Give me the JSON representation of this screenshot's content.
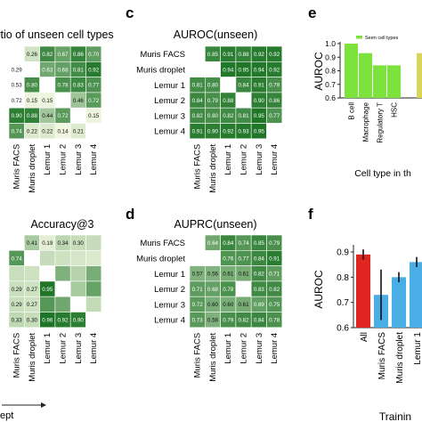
{
  "panel_letters": {
    "c": "c",
    "d": "d",
    "e": "e",
    "f": "f"
  },
  "axis_arrow_label": "ept",
  "chart_data": [
    {
      "type": "heatmap",
      "id": "ratio",
      "title": "rtio of unseen cell types",
      "row_labels": [
        "",
        "",
        "",
        "",
        "",
        ""
      ],
      "col_labels": [
        "Muris FACS",
        "Muris droplet",
        "Lemur 1",
        "Lemur 2",
        "Lemur 3",
        "Lemur 4"
      ],
      "values": [
        [
          null,
          0.26,
          0.82,
          0.67,
          0.86,
          0.7
        ],
        [
          null,
          null,
          0.63,
          0.68,
          0.81,
          0.92
        ],
        [
          null,
          0.8,
          null,
          0.78,
          0.83,
          0.77
        ],
        [
          null,
          0.15,
          0.15,
          null,
          0.46,
          0.72
        ],
        [
          0.9,
          0.88,
          0.44,
          0.72,
          null,
          0.15
        ],
        [
          0.74,
          0.22,
          0.22,
          0.14,
          0.21,
          null
        ]
      ],
      "value_labels": [
        [
          "",
          "0.26",
          "0.82",
          "0.67",
          "0.86",
          "0.70"
        ],
        [
          "0.29",
          "",
          "0.63",
          "0.68",
          "0.81",
          "0.92"
        ],
        [
          "0.53",
          "0.80",
          "",
          "0.78",
          "0.83",
          "0.77"
        ],
        [
          "0.72",
          "0.15",
          "0.15",
          "",
          "0.46",
          "0.72"
        ],
        [
          "0.90",
          "0.88",
          "0.44",
          "0.72",
          "",
          "0.15"
        ],
        [
          "0.74",
          "0.22",
          "0.22",
          "0.14",
          "0.21",
          ""
        ]
      ]
    },
    {
      "type": "heatmap",
      "id": "auroc",
      "title": "AUROC(unseen)",
      "row_labels": [
        "Muris FACS",
        "Muris droplet",
        "Lemur 1",
        "Lemur 2",
        "Lemur 3",
        "Lemur 4"
      ],
      "col_labels": [
        "Muris FACS",
        "Muris droplet",
        "Lemur 1",
        "Lemur 2",
        "Lemur 3",
        "Lemur 4"
      ],
      "values": [
        [
          null,
          0.85,
          0.91,
          0.88,
          0.92,
          0.92
        ],
        [
          null,
          null,
          0.94,
          0.95,
          0.94,
          0.92
        ],
        [
          0.81,
          0.8,
          null,
          0.84,
          0.91,
          0.79
        ],
        [
          0.84,
          0.79,
          0.88,
          null,
          0.9,
          0.86
        ],
        [
          0.82,
          0.8,
          0.82,
          0.81,
          0.95,
          0.77
        ],
        [
          0.91,
          0.9,
          0.92,
          0.93,
          0.95,
          null
        ]
      ],
      "value_labels": [
        [
          "",
          "0.85",
          "0.91",
          "0.88",
          "0.92",
          "0.92"
        ],
        [
          "",
          "",
          "0.94",
          "0.95",
          "0.94",
          "0.92"
        ],
        [
          "0.81",
          "0.80",
          "",
          "0.84",
          "0.91",
          "0.79"
        ],
        [
          "0.84",
          "0.79",
          "0.88",
          "",
          "0.90",
          "0.86"
        ],
        [
          "0.82",
          "0.80",
          "0.82",
          "0.81",
          "0.95",
          "0.77"
        ],
        [
          "0.91",
          "0.90",
          "0.92",
          "0.93",
          "0.95",
          ""
        ]
      ]
    },
    {
      "type": "heatmap",
      "id": "acc3",
      "title": "Accuracy@3",
      "row_labels": [
        "",
        "",
        "",
        "",
        "",
        ""
      ],
      "col_labels": [
        "Muris FACS",
        "Muris droplet",
        "Lemur 1",
        "Lemur 2",
        "Lemur 3",
        "Lemur 4"
      ],
      "values": [
        [
          null,
          0.41,
          0.19,
          0.34,
          0.3,
          0.3
        ],
        [
          0.74,
          null,
          0.3,
          0.27,
          0.24,
          0.22
        ],
        [
          0.29,
          0.27,
          null,
          0.58,
          0.36,
          0.6
        ],
        [
          0.29,
          0.27,
          0.95,
          null,
          0.42,
          0.67
        ],
        [
          0.29,
          0.27,
          0.74,
          0.64,
          null,
          0.31
        ],
        [
          0.33,
          0.3,
          0.96,
          0.92,
          0.9,
          null
        ]
      ],
      "value_labels": [
        [
          "",
          "0.41",
          "0.19",
          "0.34",
          "0.30",
          ""
        ],
        [
          "0.74",
          "",
          "",
          "",
          "",
          ""
        ],
        [
          "",
          "",
          "",
          "",
          "",
          ""
        ],
        [
          "0.29",
          "0.27",
          "0.95",
          "",
          "",
          ""
        ],
        [
          "0.29",
          "0.27",
          "",
          "",
          "",
          ""
        ],
        [
          "0.33",
          "0.30",
          "0.96",
          "0.92",
          "0.90",
          ""
        ]
      ]
    },
    {
      "type": "heatmap",
      "id": "auprc",
      "title": "AUPRC(unseen)",
      "row_labels": [
        "Muris FACS",
        "Muris droplet",
        "Lemur 1",
        "Lemur 2",
        "Lemur 3",
        "Lemur 4"
      ],
      "col_labels": [
        "Muris FACS",
        "Muris droplet",
        "Lemur 1",
        "Lemur 2",
        "Lemur 3",
        "Lemur 4"
      ],
      "values": [
        [
          null,
          0.64,
          0.84,
          0.74,
          0.85,
          0.79
        ],
        [
          null,
          null,
          0.76,
          0.77,
          0.84,
          0.91
        ],
        [
          0.57,
          0.56,
          0.61,
          0.61,
          0.82,
          0.71
        ],
        [
          0.71,
          0.68,
          0.78,
          null,
          0.83,
          0.82
        ],
        [
          0.72,
          0.6,
          0.6,
          0.61,
          0.69,
          0.75
        ],
        [
          0.73,
          0.58,
          0.79,
          0.82,
          0.84,
          0.78
        ]
      ],
      "value_labels": [
        [
          "",
          "0.64",
          "0.84",
          "0.74",
          "0.85",
          "0.79"
        ],
        [
          "",
          "",
          "0.76",
          "0.77",
          "0.84",
          "0.91"
        ],
        [
          "0.57",
          "0.56",
          "0.61",
          "0.61",
          "0.82",
          "0.71"
        ],
        [
          "0.71",
          "0.68",
          "0.78",
          "",
          "0.83",
          "0.82"
        ],
        [
          "0.72",
          "0.60",
          "0.60",
          "0.61",
          "0.69",
          "0.75"
        ],
        [
          "0.73",
          "0.58",
          "0.79",
          "0.82",
          "0.84",
          "0.78"
        ]
      ]
    },
    {
      "type": "bar",
      "id": "e",
      "title": "",
      "ylabel": "AUROC",
      "xlabel": "Cell type in th",
      "categories": [
        "B cell",
        "Macrophage",
        "Regulatory T",
        "HSC"
      ],
      "values": [
        1.0,
        0.93,
        0.84,
        0.84
      ],
      "extra_bar_value": 0.93,
      "ylim": [
        0.6,
        1.0
      ],
      "yticks": [
        "0.6",
        "0.7",
        "0.8",
        "0.9",
        "1.0"
      ],
      "legend": "Seen cell types",
      "colors": {
        "seen": "#7be33b",
        "other": "#d8d65a"
      }
    },
    {
      "type": "bar",
      "id": "f",
      "title": "",
      "ylabel": "AUROC",
      "xlabel": "Trainin",
      "categories": [
        "All",
        "Muris FACS",
        "Muris droplet",
        "Lemur 1"
      ],
      "values": [
        0.89,
        0.73,
        0.8,
        0.86
      ],
      "errors": [
        0.02,
        0.1,
        0.02,
        0.02
      ],
      "extra_bar_value": 0.86,
      "ylim": [
        0.6,
        0.9
      ],
      "yticks": [
        "0.6",
        "0.7",
        "0.8",
        "0.9"
      ],
      "colors": {
        "all": "#e02520",
        "others": "#49aee6"
      }
    }
  ]
}
